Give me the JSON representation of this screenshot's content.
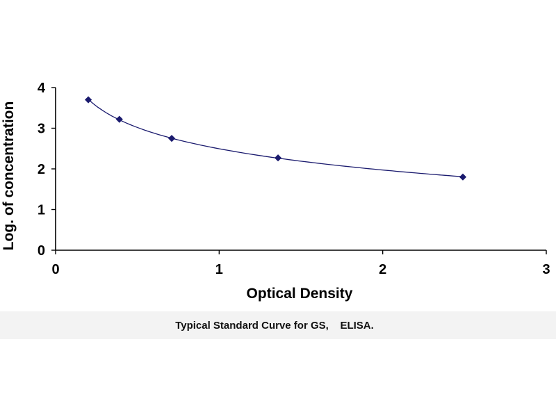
{
  "chart_data": {
    "type": "scatter",
    "title": "",
    "xlabel": "Optical Density",
    "ylabel": "Log. of concentration",
    "xlim": [
      0,
      3
    ],
    "ylim": [
      0,
      4
    ],
    "xticks": [
      "0",
      "1",
      "2",
      "3"
    ],
    "yticks": [
      "0",
      "1",
      "2",
      "3",
      "4"
    ],
    "grid": false,
    "legend": "none",
    "marker": "diamond",
    "trendline": "smooth",
    "colors": {
      "marker": "#1a1a6e",
      "line": "#1a1a6e",
      "axis": "#000000"
    },
    "series": [
      {
        "x": [
          0.2,
          0.39,
          0.71,
          1.36,
          2.49
        ],
        "y": [
          3.7,
          3.22,
          2.75,
          2.27,
          1.8
        ]
      }
    ]
  },
  "caption": "Typical Standard Curve for GS,    ELISA."
}
